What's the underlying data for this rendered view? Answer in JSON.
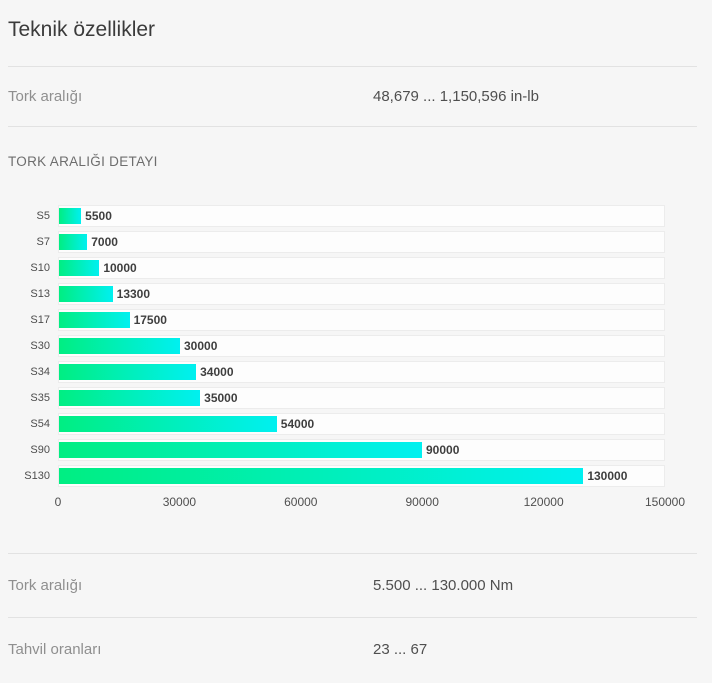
{
  "page": {
    "title": "Teknik özellikler"
  },
  "specs_top": [
    {
      "label": "Tork aralığı",
      "value": "48,679 ... 1,150,596 in-lb"
    }
  ],
  "section": {
    "header": "TORK ARALIĞI DETAYI"
  },
  "chart_data": {
    "type": "bar",
    "orientation": "horizontal",
    "title": "TORK ARALIĞI DETAYI",
    "categories": [
      "S5",
      "S7",
      "S10",
      "S13",
      "S17",
      "S30",
      "S34",
      "S35",
      "S54",
      "S90",
      "S130"
    ],
    "values": [
      5500,
      7000,
      10000,
      13300,
      17500,
      30000,
      34000,
      35000,
      54000,
      90000,
      130000
    ],
    "value_labels": [
      "5500",
      "7000",
      "10000",
      "13300",
      "17500",
      "30000",
      "34000",
      "35000",
      "54000",
      "90000",
      "130000"
    ],
    "xlim": [
      0,
      150000
    ],
    "x_ticks": [
      0,
      30000,
      60000,
      90000,
      120000,
      150000
    ],
    "x_tick_labels": [
      "0",
      "30000",
      "60000",
      "90000",
      "120000",
      "150000"
    ],
    "xlabel": "",
    "ylabel": "",
    "grid": false,
    "legend": "none",
    "bar_gradient_start": "#00ee82",
    "bar_gradient_end": "#00f0f0",
    "track_color": "#fdfdfd",
    "track_border_color": "#ececec"
  },
  "specs_bottom": [
    {
      "label": "Tork aralığı",
      "value": "5.500 ... 130.000 Nm"
    },
    {
      "label": "Tahvil oranları",
      "value": "23 ... 67"
    }
  ],
  "colors": {
    "page_background": "#f6f6f6",
    "title_text": "#3b3b3b",
    "label_text": "#8f8f8f",
    "value_text": "#4f4f4f",
    "separator": "#e2e2e2"
  }
}
